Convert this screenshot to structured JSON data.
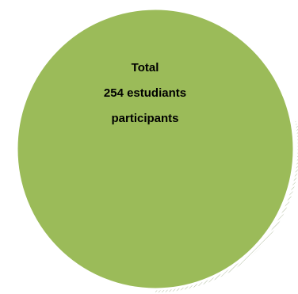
{
  "shape": {
    "fill_color": "#9bbb59",
    "stroke_color": "#ffffff",
    "shadow_color": "#a4b090"
  },
  "text": {
    "line1": "Total",
    "line2": "254 estudiants",
    "line3": "participants"
  }
}
